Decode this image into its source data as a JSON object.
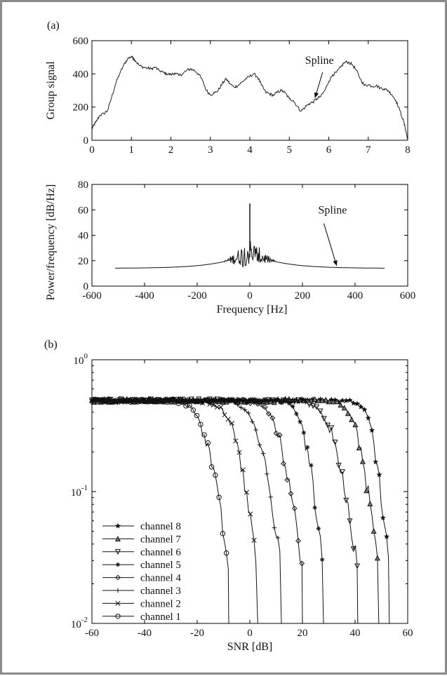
{
  "panel_labels": {
    "a": "(a)",
    "b": "(b)"
  },
  "chart_data": [
    {
      "id": "group-signal",
      "type": "line",
      "ylabel": "Group signal",
      "xlabel": "",
      "xlim": [
        0,
        8
      ],
      "ylim": [
        0,
        600
      ],
      "xticks": [
        0,
        1,
        2,
        3,
        4,
        5,
        6,
        7,
        8
      ],
      "yticks": [
        0,
        200,
        400,
        600
      ],
      "annotation": {
        "text": "Spline",
        "text_at": [
          5.4,
          460
        ],
        "arrow_to": [
          5.65,
          255
        ]
      },
      "series": [
        {
          "x": [
            0,
            0.05,
            0.1,
            0.2,
            0.3,
            0.4,
            0.5,
            0.6,
            0.7,
            0.8,
            0.9,
            1.0,
            1.05,
            1.1,
            1.2,
            1.3,
            1.4,
            1.5,
            1.6,
            1.7,
            1.8,
            1.9,
            2.0,
            2.1,
            2.2,
            2.3,
            2.4,
            2.5,
            2.6,
            2.7,
            2.8,
            2.9,
            3.0,
            3.1,
            3.2,
            3.3,
            3.4,
            3.5,
            3.6,
            3.7,
            3.8,
            3.9,
            4.0,
            4.1,
            4.2,
            4.3,
            4.4,
            4.5,
            4.6,
            4.7,
            4.8,
            4.9,
            5.0,
            5.1,
            5.2,
            5.3,
            5.4,
            5.5,
            5.6,
            5.7,
            5.8,
            5.9,
            6.0,
            6.1,
            6.2,
            6.3,
            6.4,
            6.5,
            6.6,
            6.7,
            6.8,
            6.9,
            7.0,
            7.1,
            7.2,
            7.3,
            7.4,
            7.5,
            7.6,
            7.7,
            7.8,
            7.9,
            7.95,
            8.0
          ],
          "y": [
            70,
            90,
            110,
            150,
            160,
            180,
            260,
            340,
            400,
            450,
            490,
            505,
            495,
            480,
            450,
            440,
            435,
            430,
            440,
            420,
            410,
            400,
            395,
            405,
            390,
            400,
            420,
            430,
            420,
            400,
            360,
            300,
            275,
            285,
            300,
            340,
            370,
            340,
            320,
            330,
            350,
            370,
            385,
            400,
            380,
            330,
            290,
            280,
            270,
            290,
            300,
            285,
            250,
            240,
            205,
            175,
            200,
            220,
            230,
            250,
            265,
            300,
            355,
            395,
            410,
            440,
            470,
            470,
            455,
            420,
            370,
            330,
            335,
            325,
            330,
            315,
            310,
            300,
            275,
            240,
            180,
            110,
            60,
            0
          ]
        }
      ]
    },
    {
      "id": "power-spectrum",
      "type": "line",
      "ylabel": "Power/frequency [dB/Hz]",
      "xlabel": "Frequency [Hz]",
      "xlim": [
        -600,
        600
      ],
      "ylim": [
        0,
        80
      ],
      "xticks": [
        -600,
        -400,
        -200,
        0,
        200,
        400,
        600
      ],
      "yticks": [
        0,
        20,
        40,
        60,
        80
      ],
      "annotation": {
        "text": "Spline",
        "text_at": [
          260,
          57
        ],
        "arrow_to": [
          330,
          16
        ]
      },
      "spectrum": {
        "x_range": [
          -512,
          512
        ],
        "edge_level_db": 14,
        "center_level_db": 27,
        "noise_band_hz": 100,
        "peak_db": 65
      }
    },
    {
      "id": "ber-snr",
      "type": "line",
      "xlabel": "SNR [dB]",
      "ylabel": "",
      "xlim": [
        -60,
        60
      ],
      "ylim_log10": [
        -2,
        0
      ],
      "xticks": [
        -60,
        -40,
        -20,
        0,
        20,
        40,
        60
      ],
      "yticks": [
        {
          "base": "10",
          "exp": "0",
          "log10": 0
        },
        {
          "base": "10",
          "exp": "-1",
          "log10": -1
        },
        {
          "base": "10",
          "exp": "-2",
          "log10": -2
        }
      ],
      "legend_position": "bottom-left",
      "start_level": 0.49,
      "series": [
        {
          "name": "channel 8",
          "marker": "star",
          "x50": 46,
          "end": 53
        },
        {
          "name": "channel 7",
          "marker": "triangle-up",
          "x50": 40,
          "end": 49
        },
        {
          "name": "channel 6",
          "marker": "triangle-down",
          "x50": 30,
          "end": 41
        },
        {
          "name": "channel 5",
          "marker": "asterisk",
          "x50": 20,
          "end": 28
        },
        {
          "name": "channel 4",
          "marker": "diamond",
          "x50": 10,
          "end": 20
        },
        {
          "name": "channel 3",
          "marker": "plus",
          "x50": 2,
          "end": 12
        },
        {
          "name": "channel 2",
          "marker": "cross",
          "x50": -7,
          "end": 3
        },
        {
          "name": "channel 1",
          "marker": "circle",
          "x50": -18,
          "end": -8
        }
      ]
    }
  ]
}
